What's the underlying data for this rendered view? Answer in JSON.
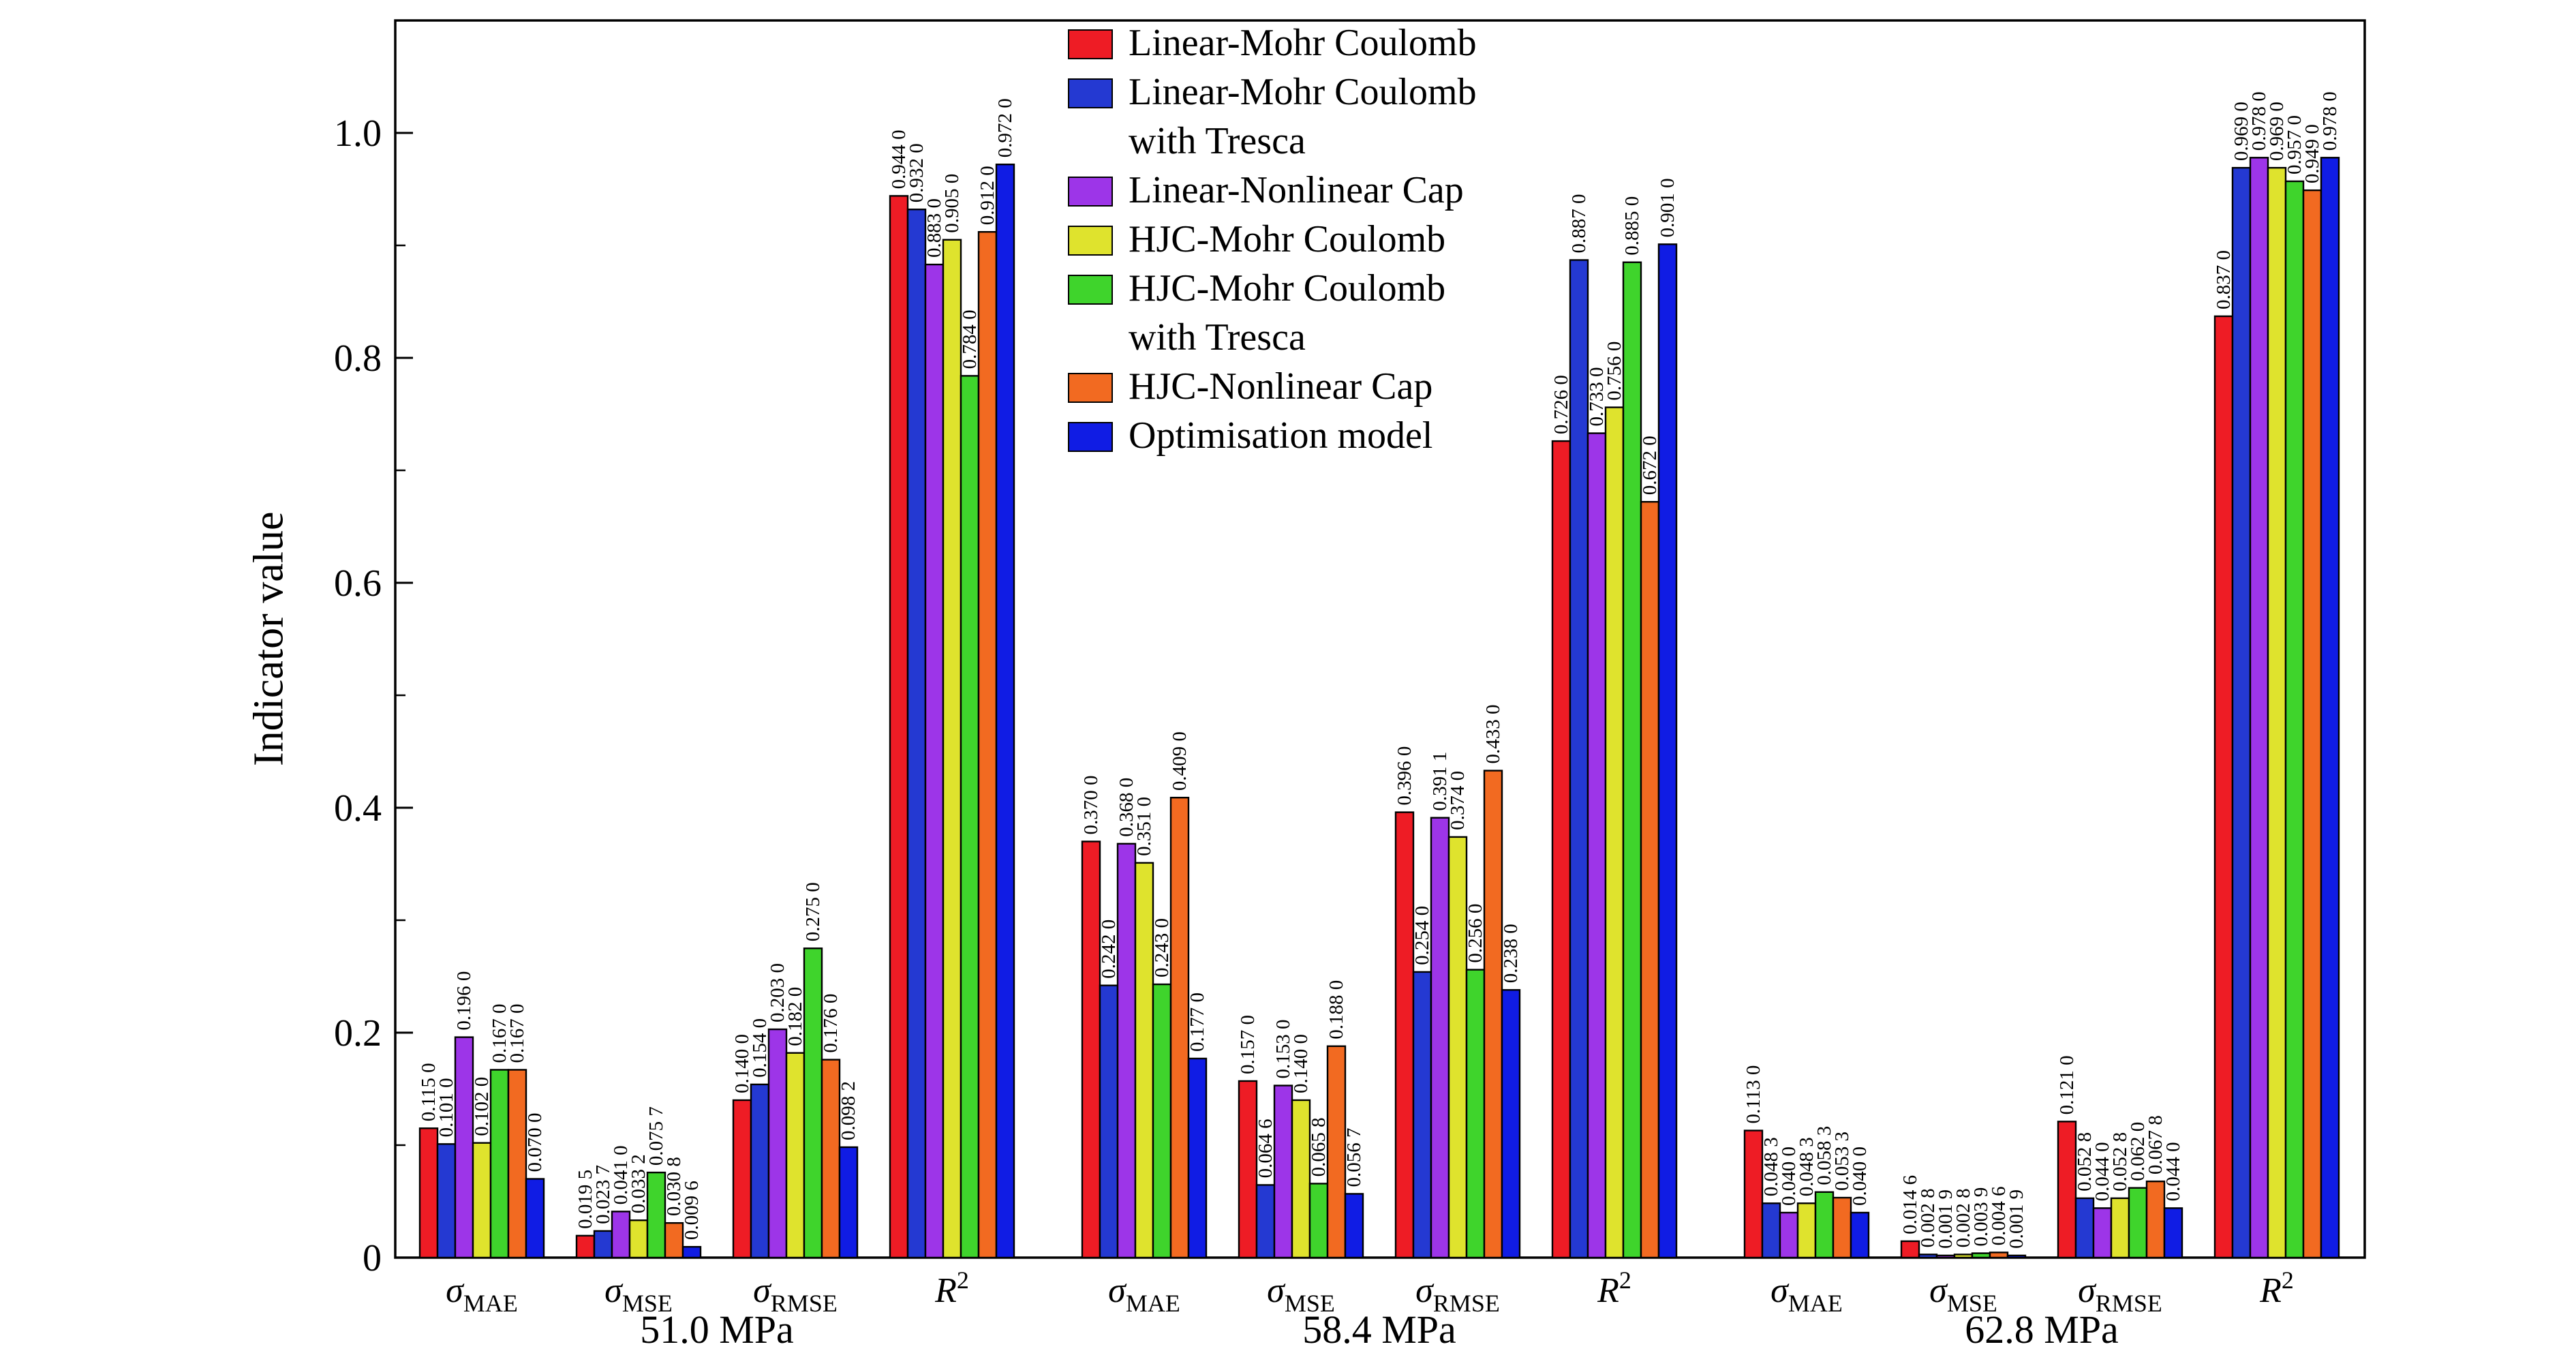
{
  "chart_data": {
    "type": "bar",
    "title": "",
    "xlabel": "",
    "ylabel": "Indicator value",
    "ylim": [
      0,
      1.1
    ],
    "grid": false,
    "legend_position": "upper center-left inside plot",
    "yticks": [
      {
        "v": 0.0,
        "label": "0"
      },
      {
        "v": 0.2,
        "label": "0.2"
      },
      {
        "v": 0.4,
        "label": "0.4"
      },
      {
        "v": 0.6,
        "label": "0.6"
      },
      {
        "v": 0.8,
        "label": "0.8"
      },
      {
        "v": 1.0,
        "label": "1.0"
      }
    ],
    "pressure_groups": [
      "51.0 MPa",
      "58.4 MPa",
      "62.8 MPa"
    ],
    "metrics": [
      {
        "symbol": "σ",
        "sub": "MAE"
      },
      {
        "symbol": "σ",
        "sub": "MSE"
      },
      {
        "symbol": "σ",
        "sub": "RMSE"
      },
      {
        "symbol": "R",
        "sup": "2"
      }
    ],
    "series": [
      {
        "name": "Linear-Mohr Coulomb",
        "legend_lines": [
          "Linear-Mohr Coulomb"
        ],
        "color": "#ee1c25",
        "values": [
          0.115,
          0.0195,
          0.14,
          0.944,
          0.37,
          0.157,
          0.396,
          0.726,
          0.113,
          0.0146,
          0.121,
          0.837
        ],
        "labels": [
          "0.115 0",
          "0.019 5",
          "0.140 0",
          "0.944 0",
          "0.370 0",
          "0.157 0",
          "0.396 0",
          "0.726 0",
          "0.113 0",
          "0.014 6",
          "0.121 0",
          "0.837 0"
        ]
      },
      {
        "name": "Linear-Mohr Coulomb with Tresca",
        "legend_lines": [
          "Linear-Mohr Coulomb",
          "with Tresca"
        ],
        "color": "#2439d2",
        "values": [
          0.101,
          0.0237,
          0.154,
          0.932,
          0.242,
          0.0646,
          0.254,
          0.887,
          0.0483,
          0.0028,
          0.0528,
          0.969
        ],
        "labels": [
          "0.101 0",
          "0.023 7",
          "0.154 0",
          "0.932 0",
          "0.242 0",
          "0.064 6",
          "0.254 0",
          "0.887 0",
          "0.048 3",
          "0.002 8",
          "0.052 8",
          "0.969 0"
        ]
      },
      {
        "name": "Linear-Nonlinear Cap",
        "legend_lines": [
          "Linear-Nonlinear Cap"
        ],
        "color": "#9d35e8",
        "values": [
          0.196,
          0.041,
          0.203,
          0.883,
          0.368,
          0.153,
          0.3911,
          0.733,
          0.04,
          0.0019,
          0.044,
          0.978
        ],
        "labels": [
          "0.196 0",
          "0.041 0",
          "0.203 0",
          "0.883 0",
          "0.368 0",
          "0.153 0",
          "0.391 1",
          "0.733 0",
          "0.040 0",
          "0.001 9",
          "0.044 0",
          "0.978 0"
        ]
      },
      {
        "name": "HJC-Mohr Coulomb",
        "legend_lines": [
          "HJC-Mohr Coulomb"
        ],
        "color": "#dfe32d",
        "values": [
          0.102,
          0.0332,
          0.182,
          0.905,
          0.351,
          0.14,
          0.374,
          0.756,
          0.0483,
          0.0028,
          0.0528,
          0.969
        ],
        "labels": [
          "0.102 0",
          "0.033 2",
          "0.182 0",
          "0.905 0",
          "0.351 0",
          "0.140 0",
          "0.374 0",
          "0.756 0",
          "0.048 3",
          "0.002 8",
          "0.052 8",
          "0.969 0"
        ]
      },
      {
        "name": "HJC-Mohr Coulomb with Tresca",
        "legend_lines": [
          "HJC-Mohr Coulomb",
          "with Tresca"
        ],
        "color": "#3fd42c",
        "values": [
          0.167,
          0.0757,
          0.275,
          0.784,
          0.243,
          0.0658,
          0.256,
          0.885,
          0.0583,
          0.0039,
          0.062,
          0.957
        ],
        "labels": [
          "0.167 0",
          "0.075 7",
          "0.275 0",
          "0.784 0",
          "0.243 0",
          "0.065 8",
          "0.256 0",
          "0.885 0",
          "0.058 3",
          "0.003 9",
          "0.062 0",
          "0.957 0"
        ]
      },
      {
        "name": "HJC-Nonlinear Cap",
        "legend_lines": [
          "HJC-Nonlinear Cap"
        ],
        "color": "#f26a21",
        "values": [
          0.167,
          0.0308,
          0.176,
          0.912,
          0.409,
          0.188,
          0.433,
          0.672,
          0.0533,
          0.0046,
          0.0678,
          0.949
        ],
        "labels": [
          "0.167 0",
          "0.030 8",
          "0.176 0",
          "0.912 0",
          "0.409 0",
          "0.188 0",
          "0.433 0",
          "0.672 0",
          "0.053 3",
          "0.004 6",
          "0.067 8",
          "0.949 0"
        ]
      },
      {
        "name": "Optimisation model",
        "legend_lines": [
          "Optimisation model"
        ],
        "color": "#101ce4",
        "values": [
          0.07,
          0.0096,
          0.0982,
          0.972,
          0.177,
          0.0567,
          0.238,
          0.901,
          0.04,
          0.0019,
          0.044,
          0.978
        ],
        "labels": [
          "0.070 0",
          "0.009 6",
          "0.098 2",
          "0.972 0",
          "0.177 0",
          "0.056 7",
          "0.238 0",
          "0.901 0",
          "0.040 0",
          "0.001 9",
          "0.044 0",
          "0.978 0"
        ]
      }
    ]
  }
}
